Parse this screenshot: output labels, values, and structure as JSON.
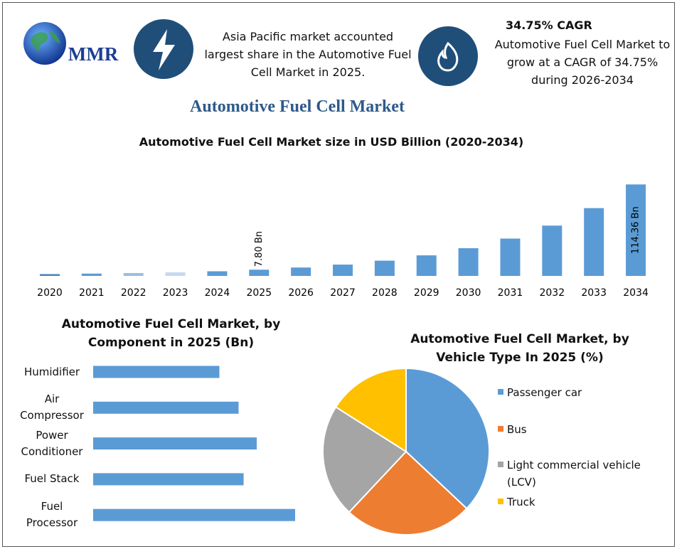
{
  "header": {
    "logo_text": "MMR",
    "highlight": "Asia Pacific market accounted largest share in the Automotive Fuel Cell Market in 2025.",
    "cagr_title": "34.75% CAGR",
    "cagr_text": "Automotive Fuel Cell Market to grow at a CAGR of 34.75% during 2026-2034",
    "title": "Automotive Fuel Cell Market"
  },
  "chart_data": [
    {
      "type": "bar",
      "title": "Automotive Fuel Cell Market size in USD Billion (2020-2034)",
      "categories": [
        "2020",
        "2021",
        "2022",
        "2023",
        "2024",
        "2025",
        "2026",
        "2027",
        "2028",
        "2029",
        "2030",
        "2031",
        "2032",
        "2033",
        "2034"
      ],
      "values": [
        2.3,
        2.9,
        3.6,
        4.5,
        5.8,
        7.8,
        10.51,
        14.16,
        19.08,
        25.71,
        34.64,
        46.68,
        62.9,
        84.75,
        114.36
      ],
      "value_labels": [
        null,
        null,
        null,
        null,
        null,
        "7.80 Bn",
        null,
        null,
        null,
        null,
        null,
        null,
        null,
        null,
        "114.36 Bn"
      ],
      "colors": [
        "#4a86c0",
        "#5b9bd5",
        "#9dbde3",
        "#c5d9f0",
        "#5b9bd5",
        "#5b9bd5",
        "#5b9bd5",
        "#5b9bd5",
        "#5b9bd5",
        "#5b9bd5",
        "#5b9bd5",
        "#5b9bd5",
        "#5b9bd5",
        "#5b9bd5",
        "#5b9bd5"
      ],
      "ylim": [
        0,
        120
      ]
    },
    {
      "type": "hbar",
      "title": "Automotive Fuel Cell Market, by Component in 2025 (Bn)",
      "categories": [
        "Humidifier",
        "Air Compressor",
        "Power Conditioner",
        "Fuel Stack",
        "Fuel Processor"
      ],
      "values": [
        1.25,
        1.44,
        1.62,
        1.49,
        2.0
      ],
      "color": "#5b9bd5",
      "xlim": [
        0,
        2.2
      ]
    },
    {
      "type": "pie",
      "title": "Automotive Fuel Cell Market, by Vehicle Type In 2025 (%)",
      "categories": [
        "Passenger car",
        "Bus",
        "Light commercial vehicle (LCV)",
        "Truck"
      ],
      "values": [
        37,
        25,
        22,
        16
      ],
      "colors": [
        "#5b9bd5",
        "#ed7d31",
        "#a5a5a5",
        "#ffc000"
      ],
      "legend": "right"
    }
  ]
}
